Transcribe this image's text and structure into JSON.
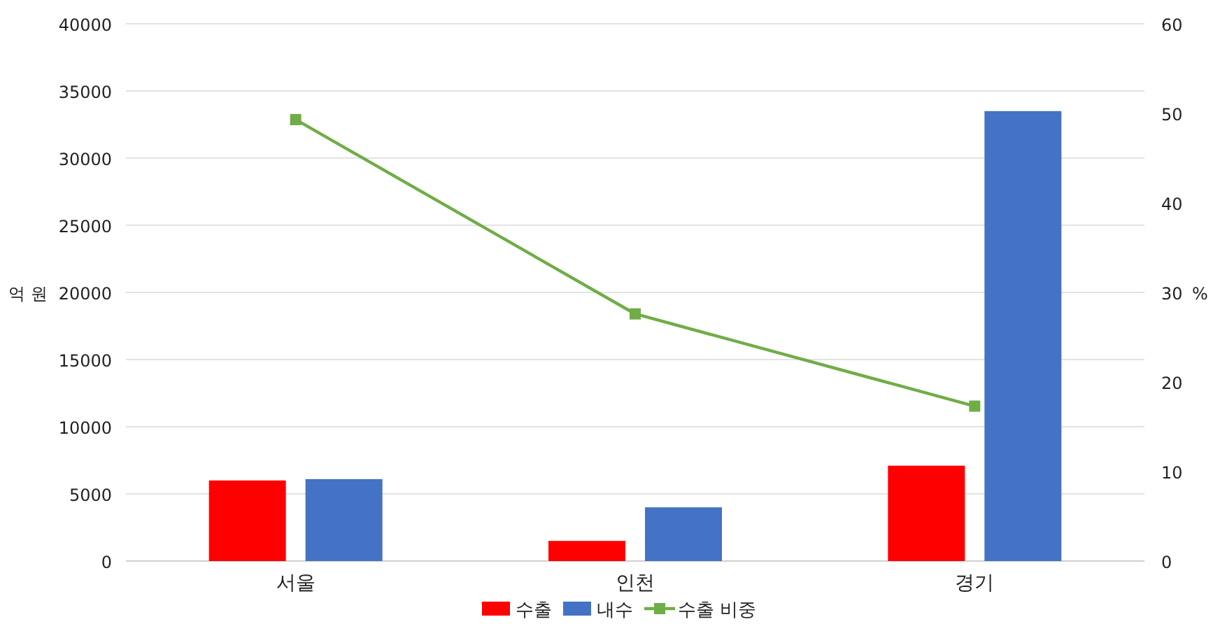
{
  "chart_data": {
    "type": "bar",
    "categories": [
      "서울",
      "인천",
      "경기"
    ],
    "series": [
      {
        "name": "수출",
        "color": "#ff0000",
        "values": [
          6000,
          1500,
          7100
        ]
      },
      {
        "name": "내수",
        "color": "#4472c4",
        "values": [
          6100,
          4000,
          33500
        ]
      },
      {
        "name": "수출 비중",
        "type": "line",
        "axis": "y2",
        "color": "#70ad47",
        "marker": "square",
        "values": [
          49.3,
          27.6,
          17.3
        ]
      }
    ],
    "ylabel": "억 원",
    "y2label": "%",
    "ylim": [
      0,
      40000
    ],
    "yticks": [
      0,
      5000,
      10000,
      15000,
      20000,
      25000,
      30000,
      35000,
      40000
    ],
    "y2lim": [
      0,
      60
    ],
    "y2ticks": [
      0,
      10,
      20,
      30,
      40,
      50,
      60
    ],
    "grid": "y",
    "legend": "bottom"
  }
}
